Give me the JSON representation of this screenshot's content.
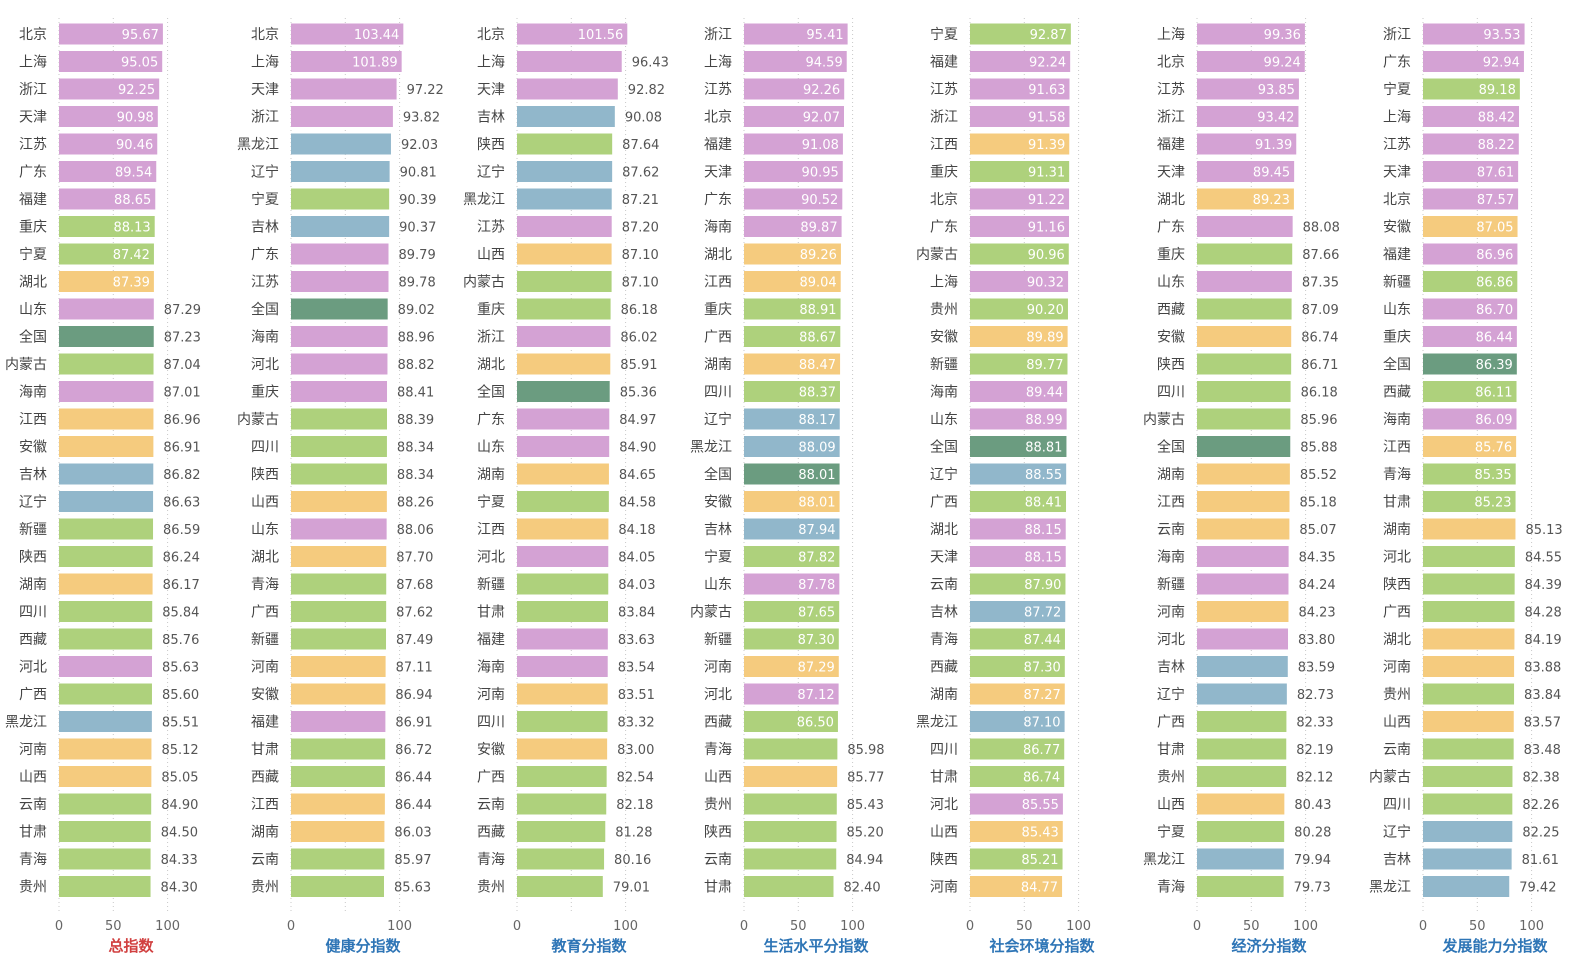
{
  "colors": {
    "pink": "#d4a2d4",
    "green": "#aed17c",
    "blue": "#91b7cb",
    "orange": "#f5cb7e",
    "darkgreen": "#6b9c80",
    "title_total": "#d14040",
    "title_sub": "#2e75b6"
  },
  "chart_data": [
    {
      "type": "bar",
      "title": "总指数",
      "xticks": [
        "0",
        "50",
        "100"
      ],
      "xlim": [
        0,
        100
      ],
      "orientation": "horizontal",
      "categories": [
        "北京",
        "上海",
        "浙江",
        "天津",
        "江苏",
        "广东",
        "福建",
        "重庆",
        "宁夏",
        "湖北",
        "山东",
        "全国",
        "内蒙古",
        "海南",
        "江西",
        "安徽",
        "吉林",
        "辽宁",
        "新疆",
        "陕西",
        "湖南",
        "四川",
        "西藏",
        "河北",
        "广西",
        "黑龙江",
        "河南",
        "山西",
        "云南",
        "甘肃",
        "青海",
        "贵州"
      ],
      "values": [
        95.67,
        95.05,
        92.25,
        90.98,
        90.46,
        89.54,
        88.65,
        88.13,
        87.42,
        87.39,
        87.29,
        87.23,
        87.04,
        87.01,
        86.96,
        86.91,
        86.82,
        86.63,
        86.59,
        86.24,
        86.17,
        85.84,
        85.76,
        85.63,
        85.6,
        85.51,
        85.12,
        85.05,
        84.9,
        84.5,
        84.33,
        84.3
      ],
      "labels": [
        "95.67",
        "95.05",
        "92.25",
        "90.98",
        "90.46",
        "89.54",
        "88.65",
        "88.13",
        "87.42",
        "87.39",
        "87.29",
        "87.23",
        "87.04",
        "87.01",
        "86.96",
        "86.91",
        "86.82",
        "86.63",
        "86.59",
        "86.24",
        "86.17",
        "85.84",
        "85.76",
        "85.63",
        "85.60",
        "85.51",
        "85.12",
        "85.05",
        "84.90",
        "84.50",
        "84.33",
        "84.30"
      ],
      "colors": [
        "pink",
        "pink",
        "pink",
        "pink",
        "pink",
        "pink",
        "pink",
        "green",
        "green",
        "orange",
        "pink",
        "darkgreen",
        "green",
        "pink",
        "orange",
        "orange",
        "blue",
        "blue",
        "green",
        "green",
        "orange",
        "green",
        "green",
        "pink",
        "green",
        "blue",
        "orange",
        "orange",
        "green",
        "green",
        "green",
        "green"
      ],
      "inside_count": 10
    },
    {
      "type": "bar",
      "title": "健康分指数",
      "xticks": [
        "0",
        "100"
      ],
      "xlim": [
        0,
        100
      ],
      "orientation": "horizontal",
      "categories": [
        "北京",
        "上海",
        "天津",
        "浙江",
        "黑龙江",
        "辽宁",
        "宁夏",
        "吉林",
        "广东",
        "江苏",
        "全国",
        "海南",
        "河北",
        "重庆",
        "内蒙古",
        "四川",
        "陕西",
        "山西",
        "山东",
        "湖北",
        "青海",
        "广西",
        "新疆",
        "河南",
        "安徽",
        "福建",
        "甘肃",
        "西藏",
        "江西",
        "湖南",
        "云南",
        "贵州"
      ],
      "values": [
        103.44,
        101.89,
        97.22,
        93.82,
        92.03,
        90.81,
        90.39,
        90.37,
        89.79,
        89.78,
        89.02,
        88.96,
        88.82,
        88.41,
        88.39,
        88.34,
        88.34,
        88.26,
        88.06,
        87.7,
        87.68,
        87.62,
        87.49,
        87.11,
        86.94,
        86.91,
        86.72,
        86.44,
        86.44,
        86.03,
        85.97,
        85.63
      ],
      "labels": [
        "103.44",
        "101.89",
        "97.22",
        "93.82",
        "92.03",
        "90.81",
        "90.39",
        "90.37",
        "89.79",
        "89.78",
        "89.02",
        "88.96",
        "88.82",
        "88.41",
        "88.39",
        "88.34",
        "88.34",
        "88.26",
        "88.06",
        "87.70",
        "87.68",
        "87.62",
        "87.49",
        "87.11",
        "86.94",
        "86.91",
        "86.72",
        "86.44",
        "86.44",
        "86.03",
        "85.97",
        "85.63"
      ],
      "colors": [
        "pink",
        "pink",
        "pink",
        "pink",
        "blue",
        "blue",
        "green",
        "blue",
        "pink",
        "pink",
        "darkgreen",
        "pink",
        "pink",
        "pink",
        "green",
        "green",
        "green",
        "orange",
        "pink",
        "orange",
        "green",
        "green",
        "green",
        "orange",
        "orange",
        "pink",
        "green",
        "green",
        "orange",
        "orange",
        "green",
        "green"
      ],
      "inside_count": 2
    },
    {
      "type": "bar",
      "title": "教育分指数",
      "xticks": [
        "0",
        "100"
      ],
      "xlim": [
        0,
        100
      ],
      "orientation": "horizontal",
      "categories": [
        "北京",
        "上海",
        "天津",
        "吉林",
        "陕西",
        "辽宁",
        "黑龙江",
        "江苏",
        "山西",
        "内蒙古",
        "重庆",
        "浙江",
        "湖北",
        "全国",
        "广东",
        "山东",
        "湖南",
        "宁夏",
        "江西",
        "河北",
        "新疆",
        "甘肃",
        "福建",
        "海南",
        "河南",
        "四川",
        "安徽",
        "广西",
        "云南",
        "西藏",
        "青海",
        "贵州"
      ],
      "values": [
        101.56,
        96.43,
        92.82,
        90.08,
        87.64,
        87.62,
        87.21,
        87.2,
        87.1,
        87.1,
        86.18,
        86.02,
        85.91,
        85.36,
        84.97,
        84.9,
        84.65,
        84.58,
        84.18,
        84.05,
        84.03,
        83.84,
        83.63,
        83.54,
        83.51,
        83.32,
        83.0,
        82.54,
        82.18,
        81.28,
        80.16,
        79.01
      ],
      "labels": [
        "101.56",
        "96.43",
        "92.82",
        "90.08",
        "87.64",
        "87.62",
        "87.21",
        "87.20",
        "87.10",
        "87.10",
        "86.18",
        "86.02",
        "85.91",
        "85.36",
        "84.97",
        "84.90",
        "84.65",
        "84.58",
        "84.18",
        "84.05",
        "84.03",
        "83.84",
        "83.63",
        "83.54",
        "83.51",
        "83.32",
        "83.00",
        "82.54",
        "82.18",
        "81.28",
        "80.16",
        "79.01"
      ],
      "colors": [
        "pink",
        "pink",
        "pink",
        "blue",
        "green",
        "blue",
        "blue",
        "pink",
        "orange",
        "green",
        "green",
        "pink",
        "orange",
        "darkgreen",
        "pink",
        "pink",
        "orange",
        "green",
        "orange",
        "pink",
        "green",
        "green",
        "pink",
        "pink",
        "orange",
        "green",
        "orange",
        "green",
        "green",
        "green",
        "green",
        "green"
      ],
      "inside_count": 1
    },
    {
      "type": "bar",
      "title": "生活水平分指数",
      "xticks": [
        "0",
        "50",
        "100"
      ],
      "xlim": [
        0,
        100
      ],
      "orientation": "horizontal",
      "categories": [
        "浙江",
        "上海",
        "江苏",
        "北京",
        "福建",
        "天津",
        "广东",
        "海南",
        "湖北",
        "江西",
        "重庆",
        "广西",
        "湖南",
        "四川",
        "辽宁",
        "黑龙江",
        "全国",
        "安徽",
        "吉林",
        "宁夏",
        "山东",
        "内蒙古",
        "新疆",
        "河南",
        "河北",
        "西藏",
        "青海",
        "山西",
        "贵州",
        "陕西",
        "云南",
        "甘肃"
      ],
      "values": [
        95.41,
        94.59,
        92.26,
        92.07,
        91.08,
        90.95,
        90.52,
        89.87,
        89.26,
        89.04,
        88.91,
        88.67,
        88.47,
        88.37,
        88.17,
        88.09,
        88.01,
        88.01,
        87.94,
        87.82,
        87.78,
        87.65,
        87.3,
        87.29,
        87.12,
        86.5,
        85.98,
        85.77,
        85.43,
        85.2,
        84.94,
        82.4
      ],
      "labels": [
        "95.41",
        "94.59",
        "92.26",
        "92.07",
        "91.08",
        "90.95",
        "90.52",
        "89.87",
        "89.26",
        "89.04",
        "88.91",
        "88.67",
        "88.47",
        "88.37",
        "88.17",
        "88.09",
        "88.01",
        "88.01",
        "87.94",
        "87.82",
        "87.78",
        "87.65",
        "87.30",
        "87.29",
        "87.12",
        "86.50",
        "85.98",
        "85.77",
        "85.43",
        "85.20",
        "84.94",
        "82.40"
      ],
      "colors": [
        "pink",
        "pink",
        "pink",
        "pink",
        "pink",
        "pink",
        "pink",
        "pink",
        "orange",
        "orange",
        "green",
        "green",
        "orange",
        "green",
        "blue",
        "blue",
        "darkgreen",
        "orange",
        "blue",
        "green",
        "pink",
        "green",
        "green",
        "orange",
        "pink",
        "green",
        "green",
        "orange",
        "green",
        "green",
        "green",
        "green"
      ],
      "inside_count": 26
    },
    {
      "type": "bar",
      "title": "社会环境分指数",
      "xticks": [
        "0",
        "50",
        "100"
      ],
      "xlim": [
        0,
        100
      ],
      "orientation": "horizontal",
      "categories": [
        "宁夏",
        "福建",
        "江苏",
        "浙江",
        "江西",
        "重庆",
        "北京",
        "广东",
        "内蒙古",
        "上海",
        "贵州",
        "安徽",
        "新疆",
        "海南",
        "山东",
        "全国",
        "辽宁",
        "广西",
        "湖北",
        "天津",
        "云南",
        "吉林",
        "青海",
        "西藏",
        "湖南",
        "黑龙江",
        "四川",
        "甘肃",
        "河北",
        "山西",
        "陕西",
        "河南"
      ],
      "values": [
        92.87,
        92.24,
        91.63,
        91.58,
        91.39,
        91.31,
        91.22,
        91.16,
        90.96,
        90.32,
        90.2,
        89.89,
        89.77,
        89.44,
        88.99,
        88.81,
        88.55,
        88.41,
        88.15,
        88.15,
        87.9,
        87.72,
        87.44,
        87.3,
        87.27,
        87.1,
        86.77,
        86.74,
        85.55,
        85.43,
        85.21,
        84.77
      ],
      "labels": [
        "92.87",
        "92.24",
        "91.63",
        "91.58",
        "91.39",
        "91.31",
        "91.22",
        "91.16",
        "90.96",
        "90.32",
        "90.20",
        "89.89",
        "89.77",
        "89.44",
        "88.99",
        "88.81",
        "88.55",
        "88.41",
        "88.15",
        "88.15",
        "87.90",
        "87.72",
        "87.44",
        "87.30",
        "87.27",
        "87.10",
        "86.77",
        "86.74",
        "85.55",
        "85.43",
        "85.21",
        "84.77"
      ],
      "colors": [
        "green",
        "pink",
        "pink",
        "pink",
        "orange",
        "green",
        "pink",
        "pink",
        "green",
        "pink",
        "green",
        "orange",
        "green",
        "pink",
        "pink",
        "darkgreen",
        "blue",
        "green",
        "pink",
        "pink",
        "green",
        "blue",
        "green",
        "green",
        "orange",
        "blue",
        "green",
        "green",
        "pink",
        "orange",
        "green",
        "orange"
      ],
      "inside_count": 32
    },
    {
      "type": "bar",
      "title": "经济分指数",
      "xticks": [
        "0",
        "50",
        "100"
      ],
      "xlim": [
        0,
        100
      ],
      "orientation": "horizontal",
      "categories": [
        "上海",
        "北京",
        "江苏",
        "浙江",
        "福建",
        "天津",
        "湖北",
        "广东",
        "重庆",
        "山东",
        "西藏",
        "安徽",
        "陕西",
        "四川",
        "内蒙古",
        "全国",
        "湖南",
        "江西",
        "云南",
        "海南",
        "新疆",
        "河南",
        "河北",
        "吉林",
        "辽宁",
        "广西",
        "甘肃",
        "贵州",
        "山西",
        "宁夏",
        "黑龙江",
        "青海"
      ],
      "values": [
        99.36,
        99.24,
        93.85,
        93.42,
        91.39,
        89.45,
        89.23,
        88.08,
        87.66,
        87.35,
        87.09,
        86.74,
        86.71,
        86.18,
        85.96,
        85.88,
        85.52,
        85.18,
        85.07,
        84.35,
        84.24,
        84.23,
        83.8,
        83.59,
        82.73,
        82.33,
        82.19,
        82.12,
        80.43,
        80.28,
        79.94,
        79.73
      ],
      "labels": [
        "99.36",
        "99.24",
        "93.85",
        "93.42",
        "91.39",
        "89.45",
        "89.23",
        "88.08",
        "87.66",
        "87.35",
        "87.09",
        "86.74",
        "86.71",
        "86.18",
        "85.96",
        "85.88",
        "85.52",
        "85.18",
        "85.07",
        "84.35",
        "84.24",
        "84.23",
        "83.80",
        "83.59",
        "82.73",
        "82.33",
        "82.19",
        "82.12",
        "80.43",
        "80.28",
        "79.94",
        "79.73"
      ],
      "colors": [
        "pink",
        "pink",
        "pink",
        "pink",
        "pink",
        "pink",
        "orange",
        "pink",
        "green",
        "pink",
        "green",
        "orange",
        "green",
        "green",
        "green",
        "darkgreen",
        "orange",
        "orange",
        "orange",
        "pink",
        "pink",
        "orange",
        "pink",
        "blue",
        "blue",
        "green",
        "green",
        "green",
        "orange",
        "green",
        "blue",
        "green"
      ],
      "inside_count": 7
    },
    {
      "type": "bar",
      "title": "发展能力分指数",
      "xticks": [
        "0",
        "50",
        "100"
      ],
      "xlim": [
        0,
        100
      ],
      "orientation": "horizontal",
      "categories": [
        "浙江",
        "广东",
        "宁夏",
        "上海",
        "江苏",
        "天津",
        "北京",
        "安徽",
        "福建",
        "新疆",
        "山东",
        "重庆",
        "全国",
        "西藏",
        "海南",
        "江西",
        "青海",
        "甘肃",
        "湖南",
        "河北",
        "陕西",
        "广西",
        "湖北",
        "河南",
        "贵州",
        "山西",
        "云南",
        "内蒙古",
        "四川",
        "辽宁",
        "吉林",
        "黑龙江"
      ],
      "values": [
        93.53,
        92.94,
        89.18,
        88.42,
        88.22,
        87.61,
        87.57,
        87.05,
        86.96,
        86.86,
        86.7,
        86.44,
        86.39,
        86.11,
        86.09,
        85.76,
        85.35,
        85.23,
        85.13,
        84.55,
        84.39,
        84.28,
        84.19,
        83.88,
        83.84,
        83.57,
        83.48,
        82.38,
        82.26,
        82.25,
        81.61,
        79.42
      ],
      "labels": [
        "93.53",
        "92.94",
        "89.18",
        "88.42",
        "88.22",
        "87.61",
        "87.57",
        "87.05",
        "86.96",
        "86.86",
        "86.70",
        "86.44",
        "86.39",
        "86.11",
        "86.09",
        "85.76",
        "85.35",
        "85.23",
        "85.13",
        "84.55",
        "84.39",
        "84.28",
        "84.19",
        "83.88",
        "83.84",
        "83.57",
        "83.48",
        "82.38",
        "82.26",
        "82.25",
        "81.61",
        "79.42"
      ],
      "colors": [
        "pink",
        "pink",
        "green",
        "pink",
        "pink",
        "pink",
        "pink",
        "orange",
        "pink",
        "green",
        "pink",
        "pink",
        "darkgreen",
        "green",
        "pink",
        "orange",
        "green",
        "green",
        "orange",
        "green",
        "green",
        "green",
        "orange",
        "orange",
        "green",
        "orange",
        "green",
        "green",
        "green",
        "blue",
        "blue",
        "blue"
      ],
      "inside_count": 18
    }
  ]
}
